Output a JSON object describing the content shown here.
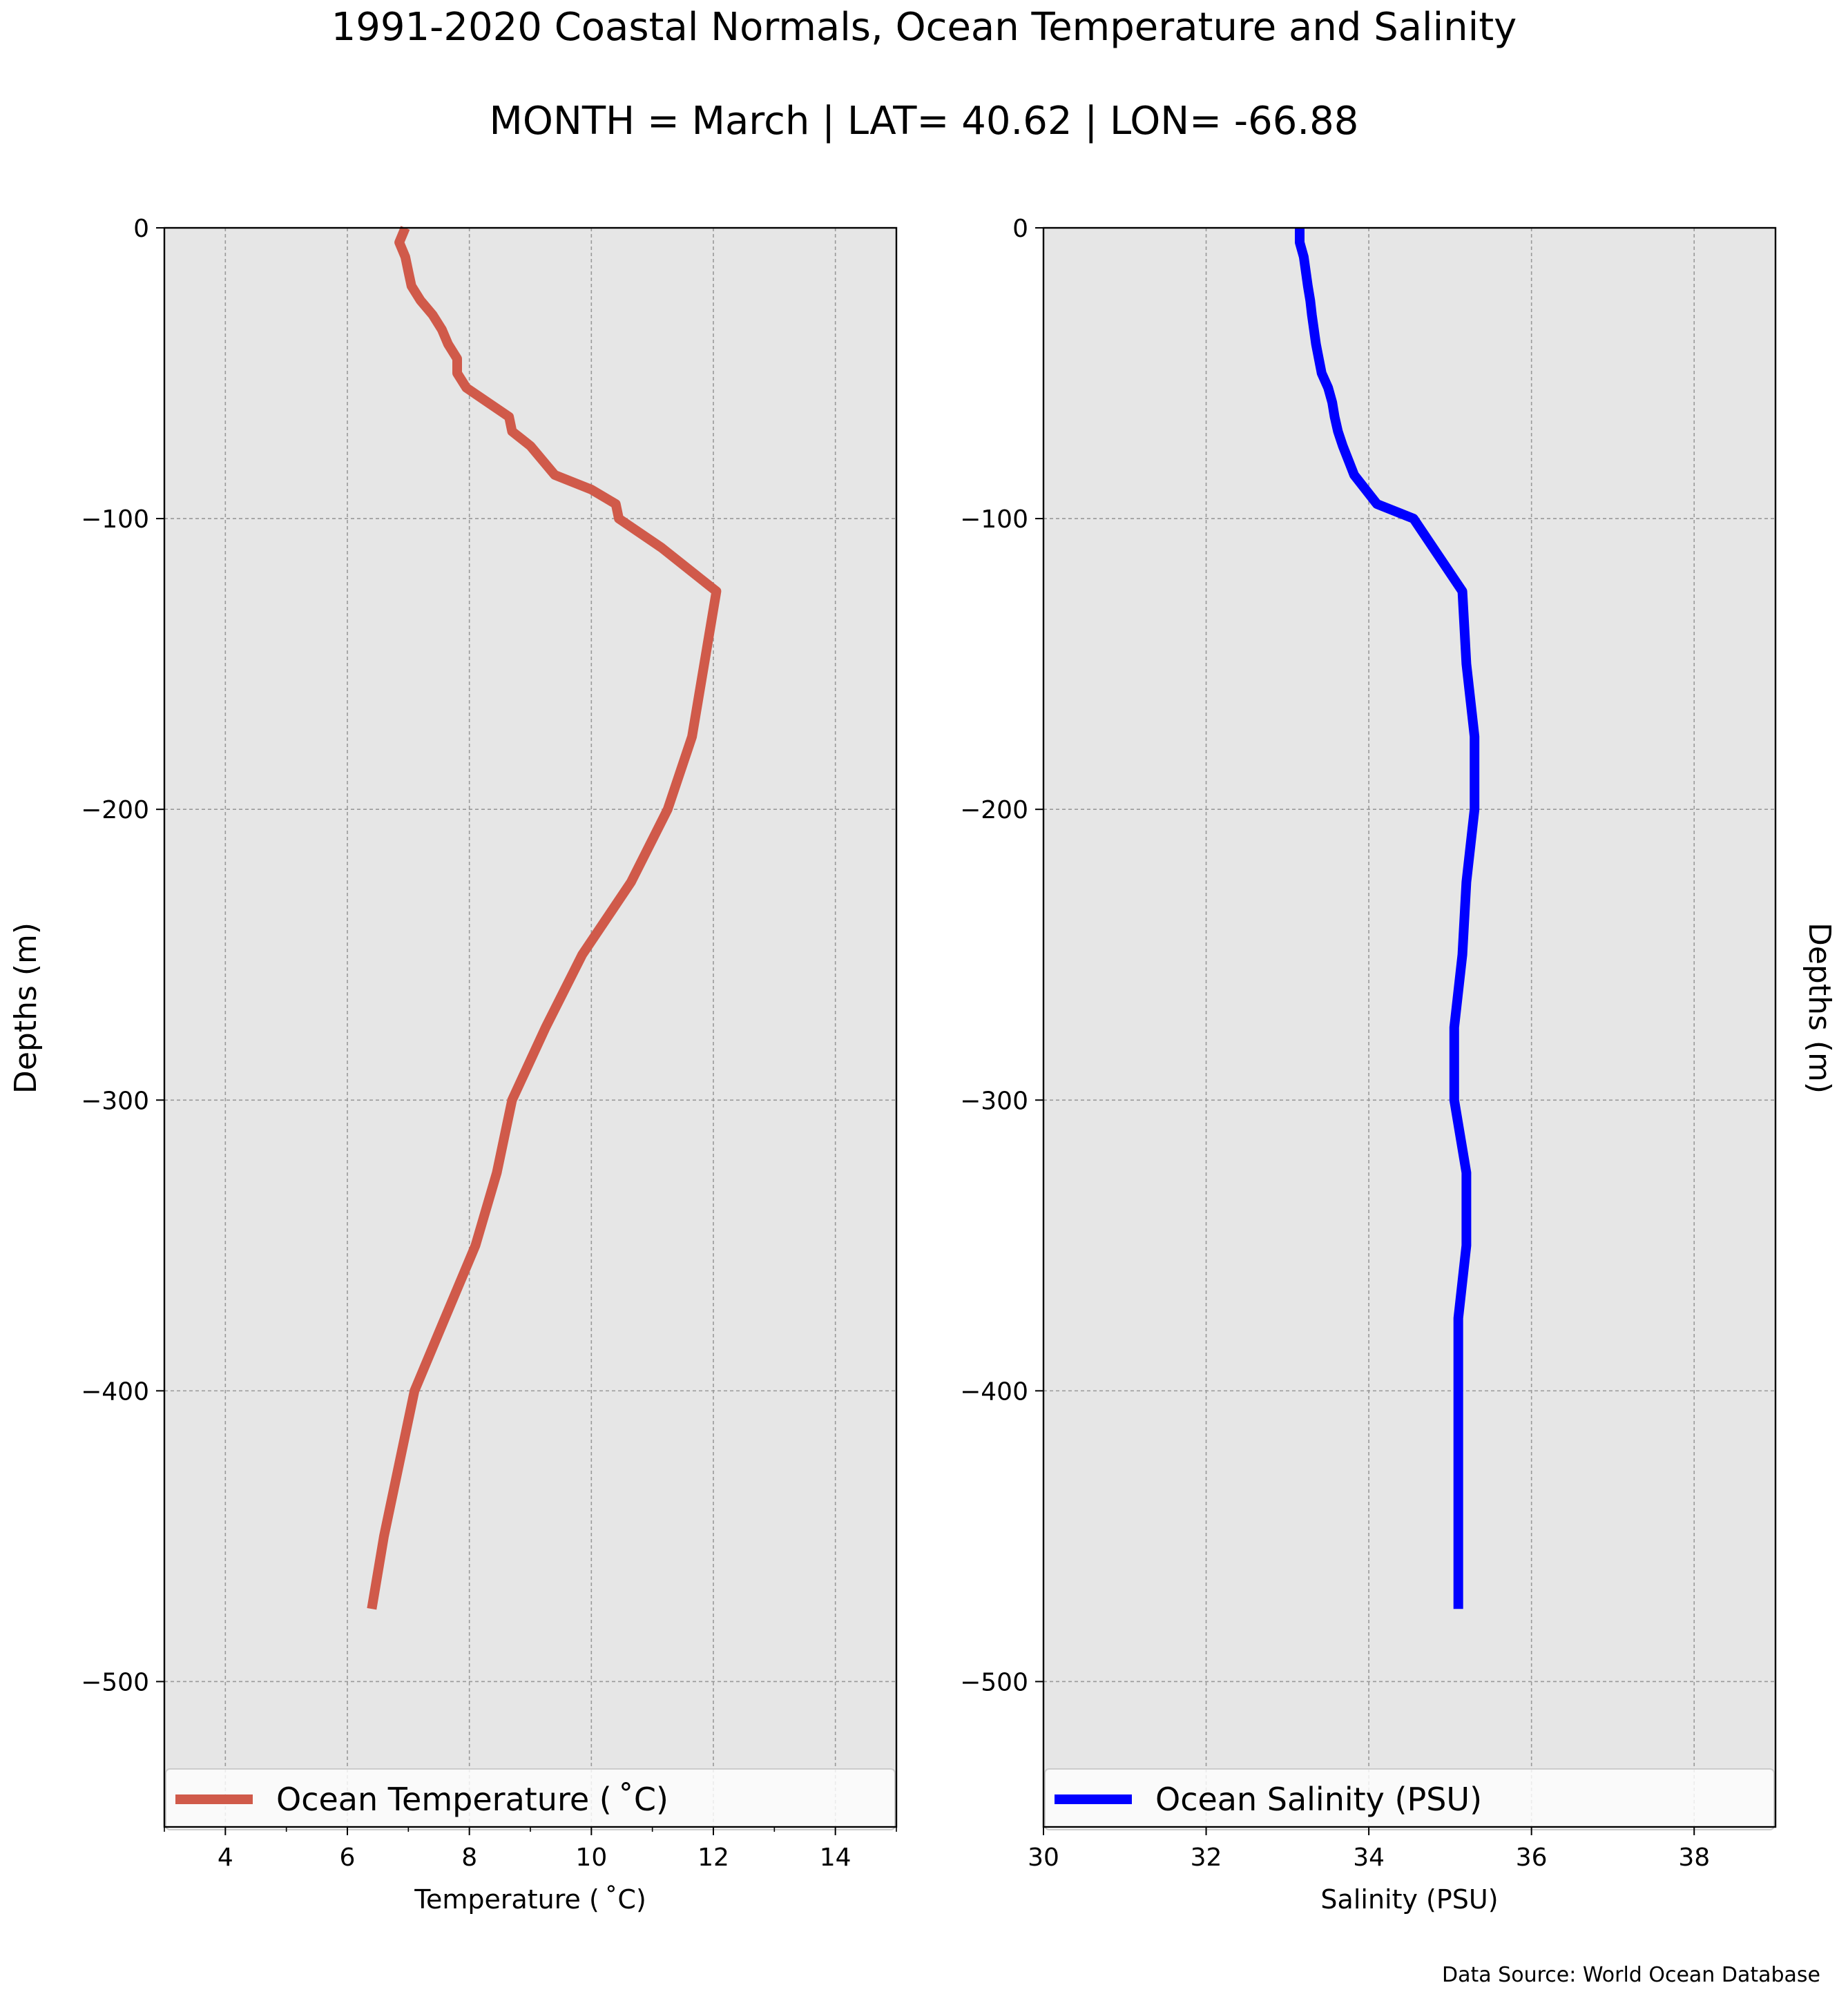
{
  "figure": {
    "title_line1": "1991-2020 Coastal Normals, Ocean Temperature and Salinity",
    "title_line2": "MONTH = March | LAT= 40.62 | LON= -66.88",
    "footer": "Data Source: World Ocean Database",
    "background": "#ffffff",
    "axes_bg": "#e6e6e6",
    "grid_color": "#999999"
  },
  "chart_data": [
    {
      "type": "line",
      "xlabel": "Temperature ($^\\circ$C)",
      "xlabel_display": "Temperature ( ˚C)",
      "ylabel": "Depths (m)",
      "xlim": [
        3,
        15
      ],
      "ylim": [
        -550,
        0
      ],
      "xticks": [
        4,
        6,
        8,
        10,
        12,
        14
      ],
      "xtick_labels": [
        "4",
        "6",
        "8",
        "10",
        "12",
        "14"
      ],
      "yticks": [
        0,
        -100,
        -200,
        -300,
        -400,
        -500
      ],
      "ytick_labels": [
        "0",
        "−100",
        "−200",
        "−300",
        "−400",
        "−500"
      ],
      "grid": true,
      "legend_placement": "bottom",
      "series": [
        {
          "name": "Ocean Temperature ($^\\circ$C)",
          "name_display": "Ocean Temperature ( ˚C)",
          "color": "#d05a4a",
          "x": [
            6.95,
            6.85,
            6.95,
            7.0,
            7.05,
            7.2,
            7.4,
            7.55,
            7.65,
            7.8,
            7.8,
            7.95,
            8.3,
            8.65,
            8.7,
            9.0,
            9.4,
            10.0,
            10.4,
            10.45,
            11.15,
            12.05,
            11.65,
            11.25,
            10.65,
            9.85,
            9.25,
            8.7,
            8.45,
            8.1,
            7.6,
            7.1,
            6.6,
            6.4
          ],
          "y": [
            0,
            -5,
            -10,
            -15,
            -20,
            -25,
            -30,
            -35,
            -40,
            -45,
            -50,
            -55,
            -60,
            -65,
            -70,
            -75,
            -85,
            -90,
            -95,
            -100,
            -110,
            -125,
            -175,
            -200,
            -225,
            -250,
            -275,
            -300,
            -325,
            -350,
            -375,
            -400,
            -450,
            -475
          ]
        }
      ]
    },
    {
      "type": "line",
      "xlabel": "Salinity (PSU)",
      "ylabel": "Depths (m)",
      "xlim": [
        30,
        39
      ],
      "ylim": [
        -550,
        0
      ],
      "xticks": [
        30,
        32,
        34,
        36,
        38
      ],
      "xtick_labels": [
        "30",
        "32",
        "34",
        "36",
        "38"
      ],
      "yticks": [
        0,
        -100,
        -200,
        -300,
        -400,
        -500
      ],
      "ytick_labels": [
        "0",
        "−100",
        "−200",
        "−300",
        "−400",
        "−500"
      ],
      "grid": true,
      "legend_placement": "bottom",
      "series": [
        {
          "name": "Ocean Salinity (PSU)",
          "color": "#0000ff",
          "x": [
            33.15,
            33.15,
            33.2,
            33.25,
            33.28,
            33.3,
            33.35,
            33.42,
            33.5,
            33.55,
            33.58,
            33.62,
            33.68,
            33.75,
            33.82,
            34.1,
            34.55,
            34.55,
            35.15,
            35.2,
            35.3,
            35.3,
            35.2,
            35.15,
            35.05,
            35.05,
            35.2,
            35.2,
            35.1,
            35.1
          ],
          "y": [
            0,
            -5,
            -10,
            -20,
            -25,
            -30,
            -40,
            -50,
            -55,
            -60,
            -65,
            -70,
            -75,
            -80,
            -85,
            -95,
            -100,
            -100,
            -125,
            -150,
            -175,
            -200,
            -225,
            -250,
            -275,
            -300,
            -325,
            -350,
            -375,
            -475
          ]
        }
      ]
    }
  ]
}
